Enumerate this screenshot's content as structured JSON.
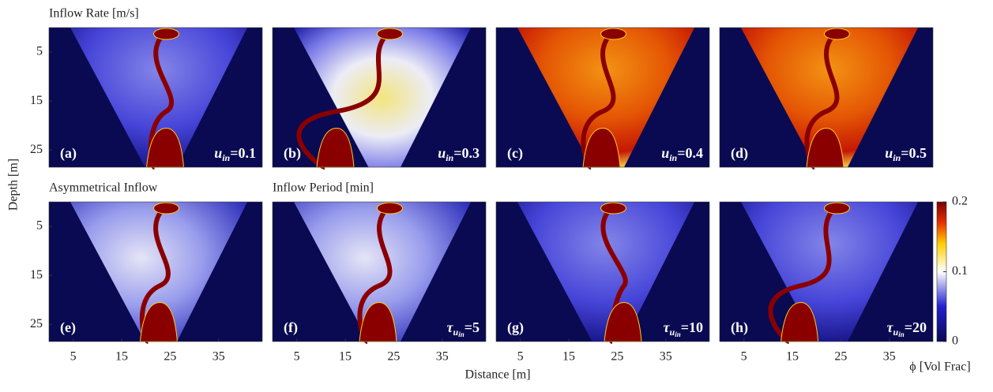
{
  "figure": {
    "row_titles": [
      "Inflow Rate [m/s]",
      "Asymmetrical Inflow",
      "Inflow Period [min]"
    ],
    "x_label": "Distance [m]",
    "y_label": "Depth [m]",
    "xlim": [
      0,
      44
    ],
    "xticks": [
      5,
      15,
      25,
      35
    ],
    "ylim": [
      0,
      28.5
    ],
    "yticks": [
      5,
      15,
      25
    ],
    "panels": [
      {
        "label": "(a)",
        "symbol": "u",
        "sub": "in",
        "text": "=0.1"
      },
      {
        "label": "(b)",
        "symbol": "u",
        "sub": "in",
        "text": "=0.3"
      },
      {
        "label": "(c)",
        "symbol": "u",
        "sub": "in",
        "text": "=0.4"
      },
      {
        "label": "(d)",
        "symbol": "u",
        "sub": "in",
        "text": "=0.5"
      },
      {
        "label": "(e)"
      },
      {
        "label": "(f)",
        "symbol": "τ",
        "sub": "u",
        "subsub": "in",
        "text": "=5"
      },
      {
        "label": "(g)",
        "symbol": "τ",
        "sub": "u",
        "subsub": "in",
        "text": "=10"
      },
      {
        "label": "(h)",
        "symbol": "τ",
        "sub": "u",
        "subsub": "in",
        "text": "=20"
      }
    ],
    "colorbar": {
      "label": "ϕ [Vol Frac]",
      "lim": [
        0,
        0.2
      ],
      "ticks": [
        0,
        0.1,
        0.2
      ]
    }
  }
}
